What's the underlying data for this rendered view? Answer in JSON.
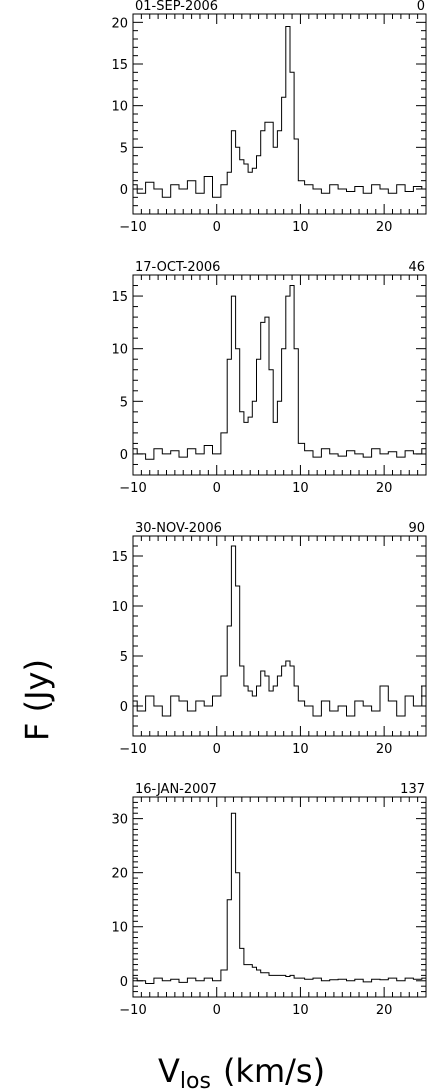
{
  "figure": {
    "ylabel": "F (Jy)",
    "xlabel_main": "V",
    "xlabel_sub": "los",
    "xlabel_unit": "(km/s)"
  },
  "chart_data": [
    {
      "type": "line",
      "date_label": "01-SEP-2006",
      "day_label": "0",
      "xlim": [
        -10,
        25
      ],
      "ylim": [
        -3,
        21
      ],
      "x_ticks": [
        -10,
        0,
        10,
        20
      ],
      "y_ticks": [
        0,
        5,
        10,
        15,
        20
      ],
      "x": [
        -10,
        -9,
        -8,
        -7,
        -6,
        -5,
        -4,
        -3,
        -2,
        -1,
        0,
        1,
        1.5,
        2,
        2.5,
        3,
        3.5,
        4,
        4.5,
        5,
        5.5,
        6,
        6.5,
        7,
        7.5,
        8,
        8.5,
        9,
        9.5,
        10,
        11,
        12,
        13,
        14,
        15,
        16,
        17,
        18,
        19,
        20,
        21,
        22,
        23,
        24,
        25
      ],
      "values": [
        0.5,
        -0.5,
        0.8,
        0,
        -1,
        0.5,
        0,
        1,
        -0.5,
        1.5,
        -1,
        0.5,
        2,
        7,
        5,
        3.5,
        3,
        2,
        2.5,
        4,
        7,
        8,
        8,
        5,
        7,
        11,
        19.5,
        14,
        6,
        1,
        0.5,
        0,
        -0.5,
        0.5,
        0,
        -0.3,
        0.3,
        -0.5,
        0.5,
        0,
        -0.5,
        0.5,
        -0.3,
        0.3,
        0
      ]
    },
    {
      "type": "line",
      "date_label": "17-OCT-2006",
      "day_label": "46",
      "xlim": [
        -10,
        25
      ],
      "ylim": [
        -2,
        17
      ],
      "x_ticks": [
        -10,
        0,
        10,
        20
      ],
      "y_ticks": [
        0,
        5,
        10,
        15
      ],
      "x": [
        -10,
        -9,
        -8,
        -7,
        -6,
        -5,
        -4,
        -3,
        -2,
        -1,
        0,
        1,
        1.5,
        2,
        2.5,
        3,
        3.5,
        4,
        4.5,
        5,
        5.5,
        6,
        6.5,
        7,
        7.5,
        8,
        8.5,
        9,
        9.5,
        10,
        11,
        12,
        13,
        14,
        15,
        16,
        17,
        18,
        19,
        20,
        21,
        22,
        23,
        24,
        25
      ],
      "values": [
        0.5,
        0,
        -0.5,
        0.5,
        0,
        0.3,
        -0.3,
        0.5,
        0,
        0.8,
        0,
        2,
        9,
        15,
        10,
        4,
        3,
        3.5,
        5,
        9,
        12.5,
        13,
        8,
        3,
        5,
        10,
        15,
        16,
        10,
        1,
        0.3,
        -0.3,
        0.5,
        0,
        -0.2,
        0.3,
        0,
        -0.3,
        0.5,
        0,
        0.2,
        -0.3,
        0.3,
        0,
        0.5
      ]
    },
    {
      "type": "line",
      "date_label": "30-NOV-2006",
      "day_label": "90",
      "xlim": [
        -10,
        25
      ],
      "ylim": [
        -3,
        17
      ],
      "x_ticks": [
        -10,
        0,
        10,
        20
      ],
      "y_ticks": [
        0,
        5,
        10,
        15
      ],
      "x": [
        -10,
        -9,
        -8,
        -7,
        -6,
        -5,
        -4,
        -3,
        -2,
        -1,
        0,
        1,
        1.5,
        2,
        2.5,
        3,
        3.5,
        4,
        4.5,
        5,
        5.5,
        6,
        6.5,
        7,
        7.5,
        8,
        8.5,
        9,
        9.5,
        10,
        11,
        12,
        13,
        14,
        15,
        16,
        17,
        18,
        19,
        20,
        21,
        22,
        23,
        24,
        25
      ],
      "values": [
        0.5,
        -0.5,
        1,
        0,
        -1,
        1,
        0.5,
        -0.5,
        0.5,
        0,
        1,
        3,
        8,
        16,
        12,
        4,
        2,
        1.5,
        1,
        2,
        3.5,
        3,
        1.5,
        2,
        3,
        4,
        4.5,
        4,
        2,
        0.5,
        0,
        -1,
        0.5,
        -0.5,
        0,
        -1,
        0.5,
        0,
        -0.5,
        2,
        0.5,
        -1,
        1,
        0,
        2
      ]
    },
    {
      "type": "line",
      "date_label": "16-JAN-2007",
      "day_label": "137",
      "xlim": [
        -10,
        25
      ],
      "ylim": [
        -3,
        34
      ],
      "x_ticks": [
        -10,
        0,
        10,
        20
      ],
      "y_ticks": [
        0,
        10,
        20,
        30
      ],
      "x": [
        -10,
        -9,
        -8,
        -7,
        -6,
        -5,
        -4,
        -3,
        -2,
        -1,
        0,
        1,
        1.5,
        2,
        2.5,
        3,
        3.5,
        4,
        4.5,
        5,
        5.5,
        6,
        6.5,
        7,
        7.5,
        8,
        8.5,
        9,
        9.5,
        10,
        11,
        12,
        13,
        14,
        15,
        16,
        17,
        18,
        19,
        20,
        21,
        22,
        23,
        24,
        25
      ],
      "values": [
        0.5,
        0,
        -0.5,
        0.5,
        0,
        0.3,
        -0.3,
        0.5,
        0,
        0.5,
        0,
        2,
        15,
        31,
        20,
        6,
        3,
        3,
        2.5,
        2,
        1.5,
        1.5,
        1,
        1,
        1,
        1,
        0.8,
        1,
        0.5,
        0.5,
        0.3,
        0.5,
        0,
        0.2,
        0.3,
        0,
        0.3,
        -0.2,
        0.3,
        0.2,
        0.5,
        0,
        0.5,
        0.3,
        0.5
      ]
    }
  ]
}
